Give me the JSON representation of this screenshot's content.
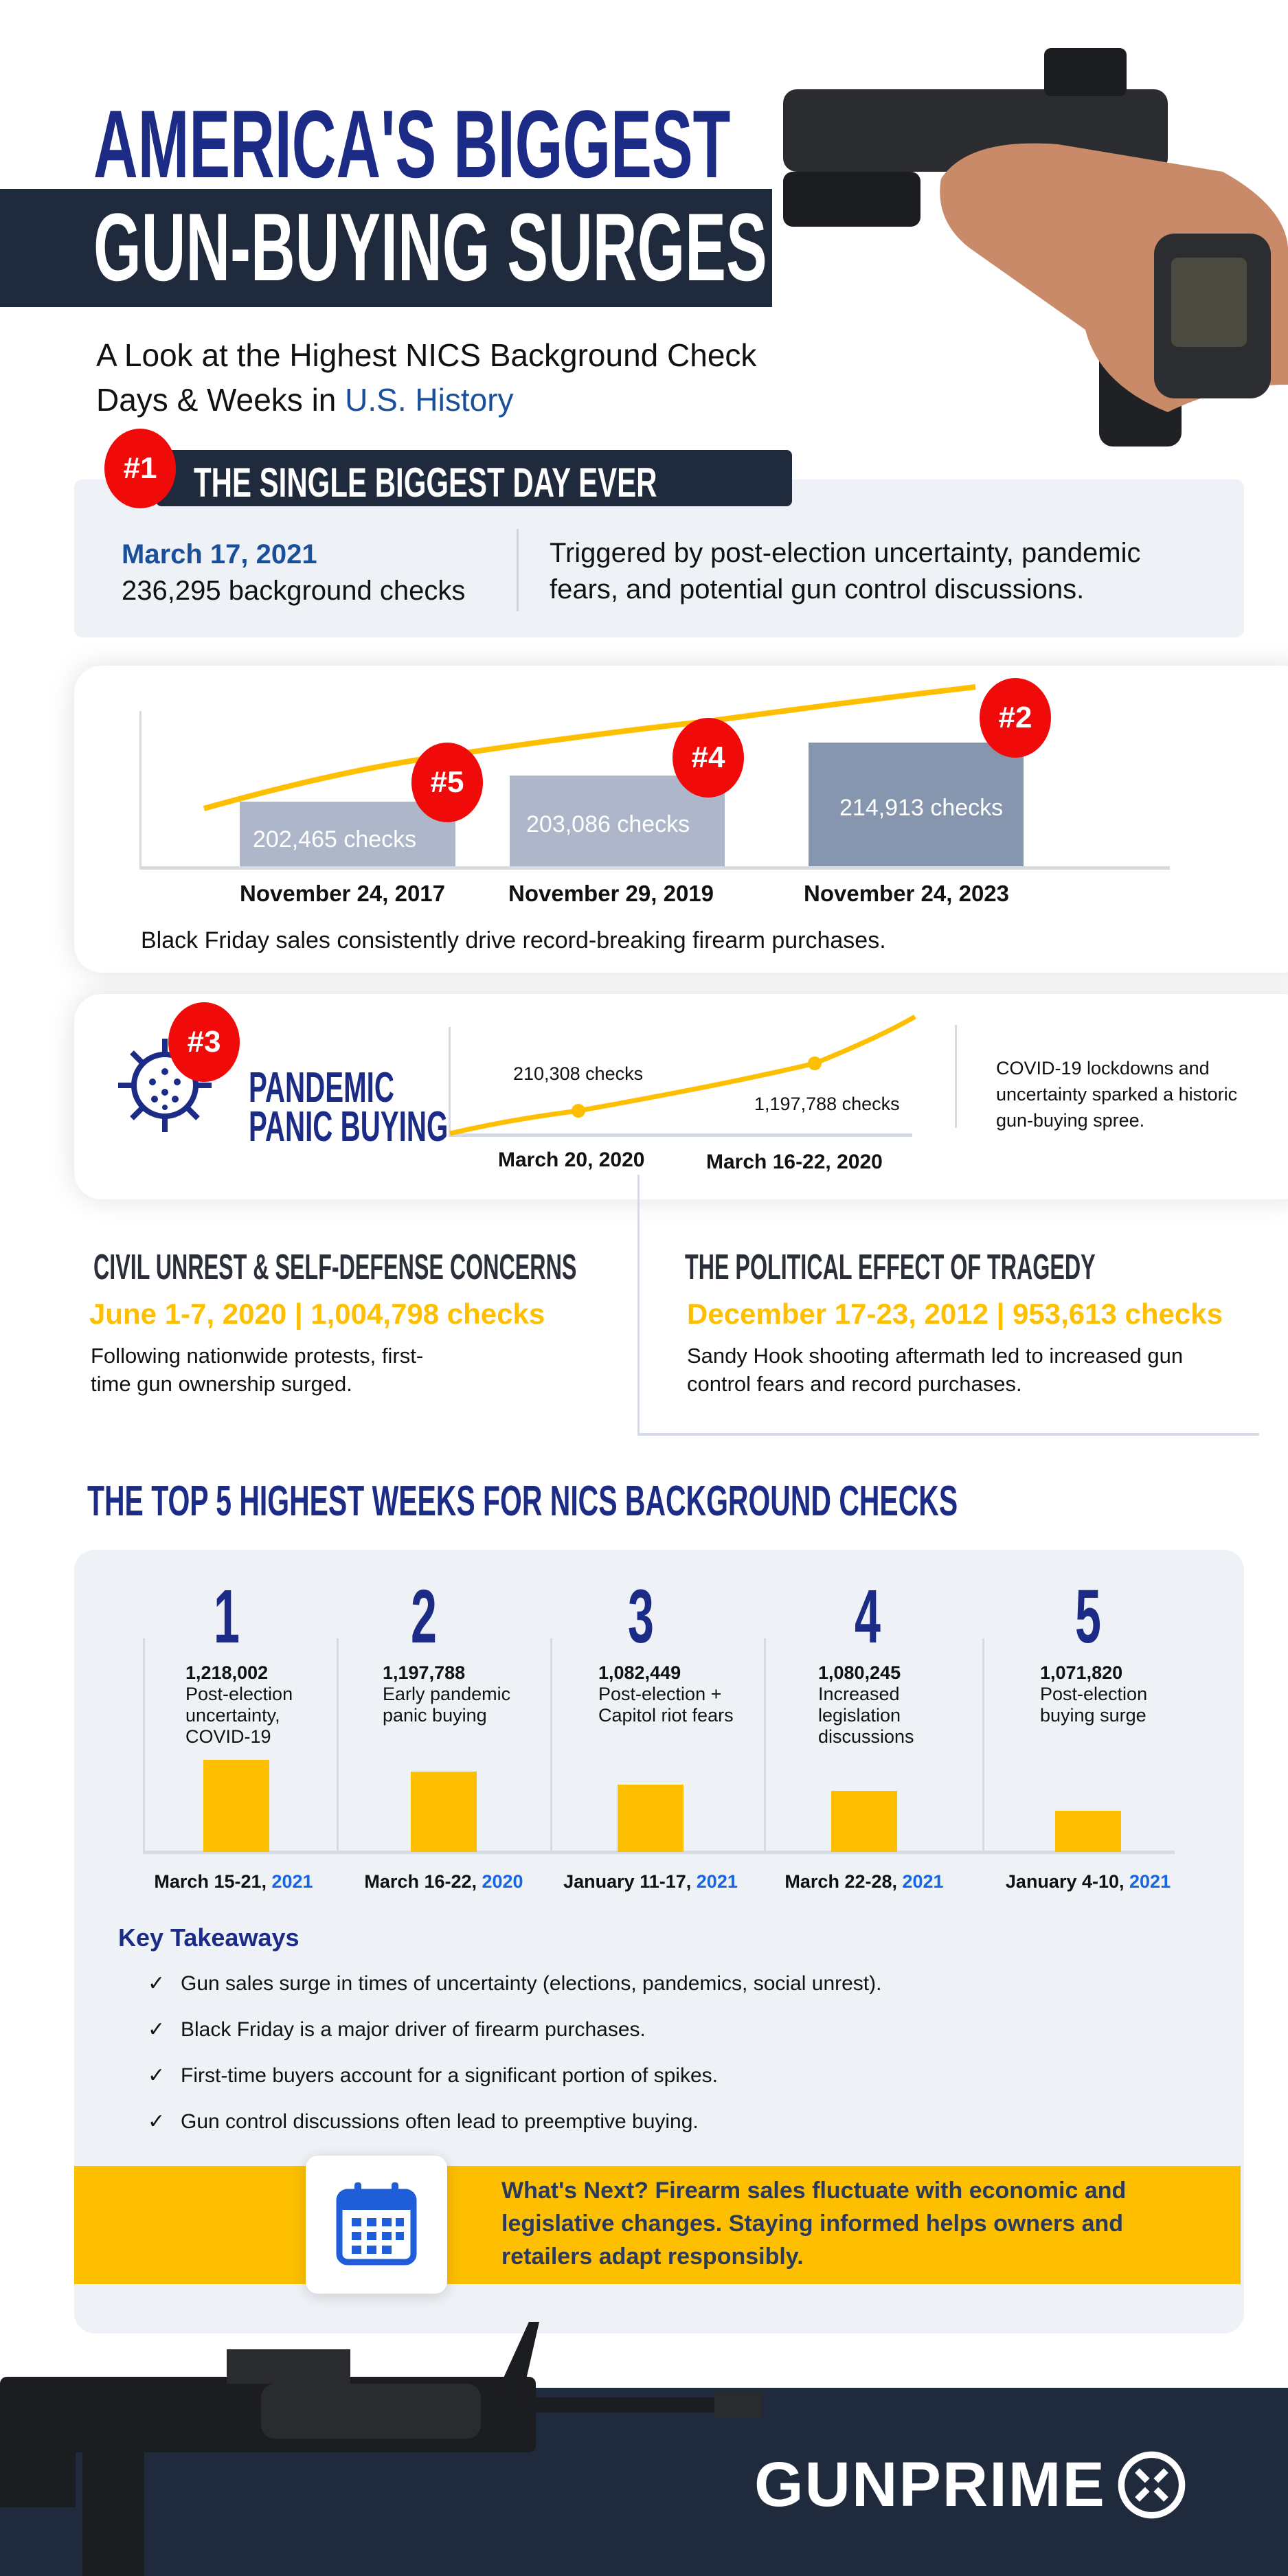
{
  "header": {
    "title_line1": "AMERICA'S BIGGEST",
    "title_line2": "GUN-BUYING SURGES",
    "subtitle_line1": "A Look at the Highest NICS Background Check",
    "subtitle_line2_prefix": "Days & Weeks in ",
    "subtitle_line2_highlight": "U.S. History"
  },
  "single_day": {
    "rank": "#1",
    "heading": "THE SINGLE BIGGEST DAY EVER",
    "date": "March 17, 2021",
    "checks": "236,295 background checks",
    "description_line1": "Triggered by post-election uncertainty, pandemic",
    "description_line2": "fears, and potential gun control discussions."
  },
  "black_friday": {
    "bars": [
      {
        "rank": "#5",
        "checks": "202,465  checks",
        "date": "November 24, 2017"
      },
      {
        "rank": "#4",
        "checks": "203,086 checks",
        "date": "November 29, 2019"
      },
      {
        "rank": "#2",
        "checks": "214,913 checks",
        "date": "November 24, 2023"
      }
    ],
    "caption": "Black Friday sales consistently drive record-breaking firearm purchases."
  },
  "pandemic": {
    "rank": "#3",
    "title_line1": "PANDEMIC",
    "title_line2": "PANIC BUYING",
    "point1_label": "210,308 checks",
    "point1_date": "March 20, 2020",
    "point2_label": "1,197,788 checks",
    "point2_date": "March 16-22, 2020",
    "description_line1": "COVID-19 lockdowns and",
    "description_line2": "uncertainty sparked a historic",
    "description_line3": "gun-buying spree."
  },
  "civil_unrest": {
    "heading": "CIVIL UNREST & SELF-DEFENSE CONCERNS",
    "stat": "June 1-7, 2020 | 1,004,798 checks",
    "desc_line1": "Following nationwide protests, first-",
    "desc_line2": "time gun ownership surged."
  },
  "tragedy": {
    "heading": "THE POLITICAL EFFECT OF TRAGEDY",
    "stat": "December 17-23, 2012 | 953,613 checks",
    "desc_line1": "Sandy Hook shooting aftermath led to increased gun",
    "desc_line2": "control fears and record purchases."
  },
  "top5": {
    "heading": "THE TOP 5 HIGHEST WEEKS FOR NICS BACKGROUND CHECKS",
    "weeks": [
      {
        "rank": "1",
        "checks": "1,218,002",
        "reason": "Post-election uncertainty, COVID-19",
        "date": "March 15-21, ",
        "year": "2021"
      },
      {
        "rank": "2",
        "checks": "1,197,788",
        "reason": "Early pandemic panic buying",
        "date": "March 16-22, ",
        "year": "2020"
      },
      {
        "rank": "3",
        "checks": "1,082,449",
        "reason": "Post-election + Capitol riot fears",
        "date": "January 11-17, ",
        "year": "2021"
      },
      {
        "rank": "4",
        "checks": "1,080,245",
        "reason": "Increased legislation discussions",
        "date": "March 22-28, ",
        "year": "2021"
      },
      {
        "rank": "5",
        "checks": "1,071,820",
        "reason": "Post-election buying surge",
        "date": "January 4-10, ",
        "year": "2021"
      }
    ]
  },
  "takeaways": {
    "heading": "Key Takeaways",
    "items": [
      "Gun sales surge in times of uncertainty (elections, pandemics, social unrest).",
      "Black Friday is a major driver of firearm purchases.",
      "First-time buyers account for a significant portion of spikes.",
      "Gun control discussions often lead to preemptive buying."
    ],
    "check": "✓"
  },
  "whats_next": {
    "line1": "What's Next? Firearm sales fluctuate with economic and",
    "line2": "legislative changes. Staying informed helps owners and",
    "line3": "retailers adapt responsibly."
  },
  "footer": {
    "logo": "GUNPRIME"
  },
  "colors": {
    "navy": "#1b2b86",
    "dark": "#1f2a3c",
    "yellow": "#fdbf00",
    "red": "#f00a0a",
    "blue": "#1565e6",
    "panel": "#eef1f6"
  }
}
